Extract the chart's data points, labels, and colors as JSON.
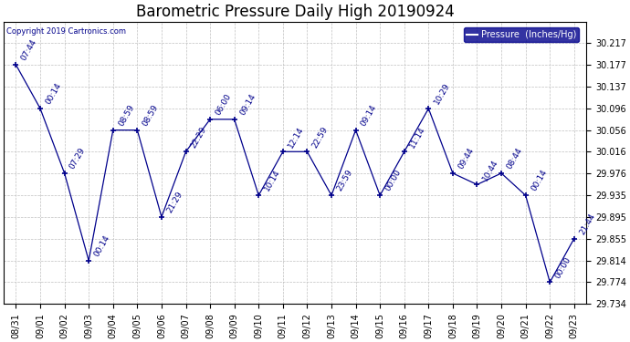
{
  "title": "Barometric Pressure Daily High 20190924",
  "copyright": "Copyright 2019 Cartronics.com",
  "legend_label": "Pressure  (Inches/Hg)",
  "background_color": "#ffffff",
  "plot_bg_color": "#ffffff",
  "line_color": "#00008B",
  "marker_color": "#00008B",
  "grid_color": "#c0c0c0",
  "dates": [
    "08/31",
    "09/01",
    "09/02",
    "09/03",
    "09/04",
    "09/05",
    "09/06",
    "09/07",
    "09/08",
    "09/09",
    "09/10",
    "09/11",
    "09/12",
    "09/13",
    "09/14",
    "09/15",
    "09/16",
    "09/17",
    "09/18",
    "09/19",
    "09/20",
    "09/21",
    "09/22",
    "09/23"
  ],
  "values": [
    30.177,
    30.096,
    29.976,
    29.814,
    30.056,
    30.056,
    29.895,
    30.016,
    30.076,
    30.076,
    29.935,
    30.016,
    30.016,
    29.935,
    30.056,
    29.935,
    30.016,
    30.096,
    29.976,
    29.955,
    29.976,
    29.935,
    29.774,
    29.855
  ],
  "time_labels": [
    "07:44",
    "00:14",
    "07:29",
    "00:14",
    "08:59",
    "08:59",
    "21:29",
    "22:29",
    "06:00",
    "09:14",
    "10:14",
    "12:14",
    "22:59",
    "23:59",
    "09:14",
    "00:00",
    "11:14",
    "10:29",
    "09:44",
    "10:44",
    "08:44",
    "00:14",
    "00:00",
    "21:44"
  ],
  "ylim_min": 29.734,
  "ylim_max": 30.257,
  "yticks": [
    29.734,
    29.774,
    29.814,
    29.855,
    29.895,
    29.935,
    29.976,
    30.016,
    30.056,
    30.096,
    30.137,
    30.177,
    30.217
  ],
  "title_fontsize": 12,
  "tick_fontsize": 7,
  "label_fontsize": 6.5,
  "figwidth": 6.9,
  "figheight": 3.75
}
